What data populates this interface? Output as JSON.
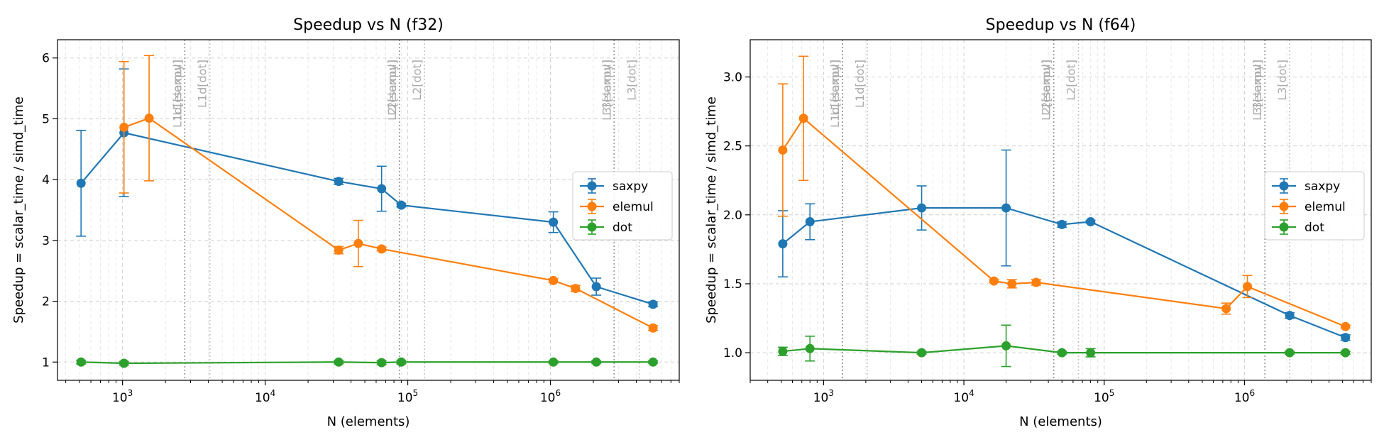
{
  "chart_data": [
    {
      "type": "line",
      "title": "Speedup vs N (f32)",
      "xlabel": "N (elements)",
      "ylabel": "Speedup = scalar_time / simd_time",
      "xscale": "log",
      "xlim": [
        350,
        8000000
      ],
      "ylim": [
        0.7,
        6.3
      ],
      "xticks": [
        {
          "v": 1000,
          "e": "3"
        },
        {
          "v": 10000,
          "e": "4"
        },
        {
          "v": 100000,
          "e": "5"
        },
        {
          "v": 1000000,
          "e": "6"
        }
      ],
      "yticks": [
        1,
        2,
        3,
        4,
        5,
        6
      ],
      "ytick_labels": [
        "1",
        "2",
        "3",
        "4",
        "5",
        "6"
      ],
      "grid": true,
      "legend": "center-right",
      "series": [
        {
          "name": "saxpy",
          "color": "#1f77b4",
          "x": [
            512,
            1024,
            32768,
            65536,
            90000,
            1048576,
            2097152,
            5242880
          ],
          "y": [
            3.94,
            4.77,
            3.97,
            3.85,
            3.58,
            3.3,
            2.24,
            1.95
          ],
          "err": [
            0.87,
            1.05,
            0.05,
            0.37,
            0.03,
            0.17,
            0.14,
            0.04
          ]
        },
        {
          "name": "elemul",
          "color": "#ff7f0e",
          "x": [
            1024,
            1536,
            32768,
            45000,
            65536,
            1048576,
            1500000,
            5242880
          ],
          "y": [
            4.86,
            5.01,
            2.84,
            2.95,
            2.86,
            2.34,
            2.21,
            1.56
          ],
          "err": [
            1.08,
            1.03,
            0.06,
            0.38,
            0.03,
            0.03,
            0.05,
            0.04
          ]
        },
        {
          "name": "dot",
          "color": "#2ca02c",
          "x": [
            512,
            1024,
            32768,
            65536,
            90000,
            1048576,
            2097152,
            5242880
          ],
          "y": [
            1.0,
            0.98,
            1.0,
            0.99,
            1.0,
            1.0,
            1.0,
            1.0
          ],
          "err": [
            0.03,
            0.03,
            0.03,
            0.03,
            0.03,
            0.02,
            0.02,
            0.02
          ]
        }
      ],
      "annotations": [
        {
          "x": 2730,
          "label": "L1[saxpy]",
          "style": "dotted"
        },
        {
          "x": 2730,
          "label": "L1d[elemul]",
          "style": "dotted"
        },
        {
          "x": 4096,
          "label": "L1d[dot]",
          "style": "dotted"
        },
        {
          "x": 87380,
          "label": "L2[saxpy]",
          "style": "dotted"
        },
        {
          "x": 87380,
          "label": "L2[elemul]",
          "style": "dotted"
        },
        {
          "x": 131072,
          "label": "L2[dot]",
          "style": "dotted"
        },
        {
          "x": 2796203,
          "label": "L3[saxpy]",
          "style": "dotted"
        },
        {
          "x": 2796203,
          "label": "L3[elemul]",
          "style": "dotted"
        },
        {
          "x": 4194304,
          "label": "L3[dot]",
          "style": "dotted"
        }
      ]
    },
    {
      "type": "line",
      "title": "Speedup vs N (f64)",
      "xlabel": "N (elements)",
      "ylabel": "Speedup = scalar_time / simd_time",
      "xscale": "log",
      "xlim": [
        300,
        8000000
      ],
      "ylim": [
        0.8,
        3.27
      ],
      "xticks": [
        {
          "v": 1000,
          "e": "3"
        },
        {
          "v": 10000,
          "e": "4"
        },
        {
          "v": 100000,
          "e": "5"
        },
        {
          "v": 1000000,
          "e": "6"
        }
      ],
      "yticks": [
        1.0,
        1.5,
        2.0,
        2.5,
        3.0
      ],
      "ytick_labels": [
        "1.0",
        "1.5",
        "2.0",
        "2.5",
        "3.0"
      ],
      "grid": true,
      "legend": "center-right",
      "series": [
        {
          "name": "saxpy",
          "color": "#1f77b4",
          "x": [
            512,
            800,
            5000,
            20000,
            50000,
            80000,
            2097152,
            5242880
          ],
          "y": [
            1.79,
            1.95,
            2.05,
            2.05,
            1.93,
            1.95,
            1.27,
            1.11
          ],
          "err": [
            0.24,
            0.13,
            0.16,
            0.42,
            0.02,
            0.01,
            0.02,
            0.02
          ]
        },
        {
          "name": "elemul",
          "color": "#ff7f0e",
          "x": [
            512,
            720,
            16384,
            22000,
            32768,
            740000,
            1048576,
            5242880
          ],
          "y": [
            2.47,
            2.7,
            1.52,
            1.5,
            1.51,
            1.32,
            1.48,
            1.19
          ],
          "err": [
            0.48,
            0.45,
            0.01,
            0.03,
            0.02,
            0.04,
            0.08,
            0.01
          ]
        },
        {
          "name": "dot",
          "color": "#2ca02c",
          "x": [
            512,
            800,
            5000,
            20000,
            50000,
            80000,
            2097152,
            5242880
          ],
          "y": [
            1.01,
            1.03,
            1.0,
            1.05,
            1.0,
            1.0,
            1.0,
            1.0
          ],
          "err": [
            0.03,
            0.09,
            0.01,
            0.15,
            0.01,
            0.03,
            0.01,
            0.01
          ]
        }
      ],
      "annotations": [
        {
          "x": 1365,
          "label": "L1[saxpy]",
          "style": "dotted"
        },
        {
          "x": 1365,
          "label": "L1d[elemul]",
          "style": "dotted"
        },
        {
          "x": 2048,
          "label": "L1d[dot]",
          "style": "dotted"
        },
        {
          "x": 43690,
          "label": "L2[saxpy]",
          "style": "dotted"
        },
        {
          "x": 43690,
          "label": "L2[elemul]",
          "style": "dotted"
        },
        {
          "x": 65536,
          "label": "L2[dot]",
          "style": "dotted"
        },
        {
          "x": 1398101,
          "label": "L3[saxpy]",
          "style": "dotted"
        },
        {
          "x": 1398101,
          "label": "L3[elemul]",
          "style": "dotted"
        },
        {
          "x": 2097152,
          "label": "L3[dot]",
          "style": "dotted"
        }
      ]
    }
  ]
}
